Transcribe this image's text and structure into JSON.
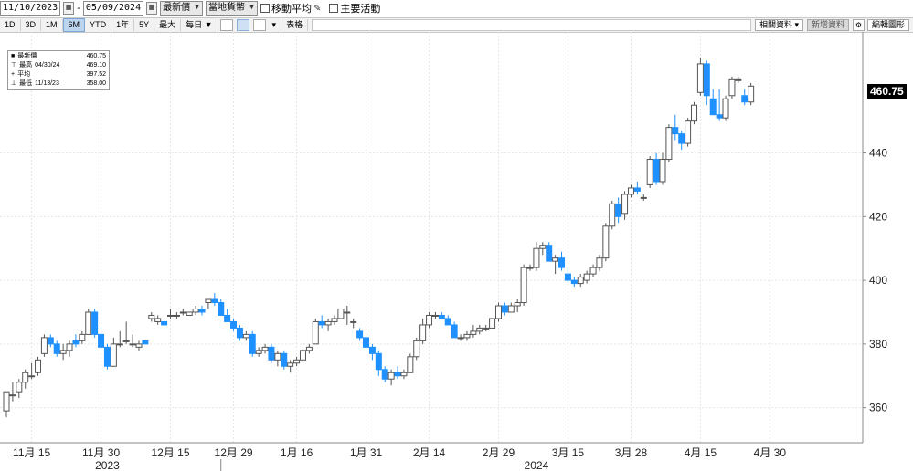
{
  "toolbar": {
    "start_date": "11/10/2023",
    "end_date": "05/09/2024",
    "date_sep": "-",
    "field_select": "最新價",
    "currency_select": "當地貨幣",
    "moving_avg_label": "移動平均",
    "events_label": "主要活動"
  },
  "periods": [
    "1D",
    "3D",
    "1M",
    "6M",
    "YTD",
    "1年",
    "5Y",
    "最大",
    "每日 ▼"
  ],
  "active_period": "6M",
  "table_label": "表格",
  "related_label": "相關資料 ▾",
  "news_label": "新增資料",
  "edit_label": "編輯圖形",
  "legend": {
    "last_label": "最新價",
    "last_value": "460.75",
    "high_label": "最高",
    "high_date": "04/30/24",
    "high_value": "469.10",
    "avg_label": "平均",
    "avg_value": "397.52",
    "low_label": "最低",
    "low_date": "11/13/23",
    "low_value": "358.00"
  },
  "last_price_label": "460.75",
  "colors": {
    "up_fill": "#ffffff",
    "up_edge": "#555555",
    "down_fill": "#1e90ff",
    "grid": "#e6e6e6",
    "axis": "#888888"
  },
  "chart_data": {
    "type": "candlestick",
    "ylim": [
      349,
      478
    ],
    "yticks": [
      360,
      380,
      400,
      420,
      440
    ],
    "xlim": [
      0,
      135
    ],
    "grid": true,
    "xticks": [
      {
        "x": 4,
        "label": "11月 15"
      },
      {
        "x": 15,
        "label": "11月 30"
      },
      {
        "x": 26,
        "label": "12月 15"
      },
      {
        "x": 36,
        "label": "12月 29"
      },
      {
        "x": 46,
        "label": "1月 16"
      },
      {
        "x": 57,
        "label": "1月 31"
      },
      {
        "x": 67,
        "label": "2月 14"
      },
      {
        "x": 78,
        "label": "2月 29"
      },
      {
        "x": 89,
        "label": "3月 15"
      },
      {
        "x": 99,
        "label": "3月 28"
      },
      {
        "x": 110,
        "label": "4月 15"
      },
      {
        "x": 121,
        "label": "4月 30"
      }
    ],
    "years": [
      {
        "x": 16,
        "label": "2023"
      },
      {
        "x": 84,
        "label": "2024"
      }
    ],
    "year_divider_x": 34,
    "candles": [
      [
        359,
        365,
        357,
        365
      ],
      [
        364,
        368,
        362,
        364
      ],
      [
        365,
        369,
        363,
        368
      ],
      [
        368,
        372,
        366,
        371
      ],
      [
        370,
        374,
        369,
        370
      ],
      [
        371,
        376,
        370,
        375
      ],
      [
        377,
        383,
        376,
        382
      ],
      [
        382,
        383,
        379,
        380
      ],
      [
        380,
        381,
        376,
        377
      ],
      [
        377,
        380,
        375,
        378
      ],
      [
        378,
        381,
        376,
        380
      ],
      [
        381,
        383,
        379,
        380
      ],
      [
        381,
        384,
        380,
        383
      ],
      [
        383,
        391,
        383,
        390
      ],
      [
        390,
        391,
        382,
        383
      ],
      [
        383,
        385,
        378,
        379
      ],
      [
        379,
        380,
        372,
        373
      ],
      [
        373,
        382,
        373,
        380
      ],
      [
        380,
        384,
        379,
        380
      ],
      [
        381,
        387,
        380,
        381
      ],
      [
        380,
        383,
        379,
        380
      ],
      [
        379,
        381,
        378,
        380
      ],
      [
        381,
        381,
        380,
        380
      ],
      [
        388,
        390,
        387,
        389
      ],
      [
        387,
        389,
        386,
        388
      ],
      [
        387,
        387,
        386,
        386
      ],
      [
        389,
        391,
        388,
        389
      ],
      [
        389,
        390,
        388,
        389
      ],
      [
        390,
        391,
        389,
        390
      ],
      [
        389,
        390,
        389,
        390
      ],
      [
        390,
        392,
        389,
        391
      ],
      [
        391,
        392,
        389,
        390
      ],
      [
        393,
        394,
        391,
        394
      ],
      [
        394,
        396,
        392,
        393
      ],
      [
        393,
        394,
        389,
        389
      ],
      [
        389,
        391,
        387,
        387
      ],
      [
        387,
        388,
        384,
        385
      ],
      [
        385,
        386,
        381,
        382
      ],
      [
        382,
        384,
        381,
        383
      ],
      [
        383,
        384,
        376,
        377
      ],
      [
        377,
        379,
        376,
        378
      ],
      [
        378,
        380,
        377,
        379
      ],
      [
        379,
        380,
        374,
        375
      ],
      [
        375,
        378,
        373,
        377
      ],
      [
        377,
        378,
        372,
        373
      ],
      [
        373,
        375,
        371,
        374
      ],
      [
        374,
        376,
        373,
        375
      ],
      [
        375,
        379,
        374,
        378
      ],
      [
        378,
        380,
        377,
        379
      ],
      [
        380,
        388,
        380,
        387
      ],
      [
        387,
        389,
        385,
        386
      ],
      [
        386,
        388,
        384,
        387
      ],
      [
        387,
        389,
        386,
        388
      ],
      [
        388,
        391,
        388,
        391
      ],
      [
        390,
        392,
        386,
        390
      ],
      [
        387,
        388,
        385,
        387
      ],
      [
        384,
        385,
        381,
        382
      ],
      [
        382,
        384,
        377,
        379
      ],
      [
        379,
        380,
        375,
        377
      ],
      [
        377,
        378,
        370,
        372
      ],
      [
        372,
        373,
        368,
        369
      ],
      [
        369,
        372,
        367,
        371
      ],
      [
        371,
        373,
        369,
        370
      ],
      [
        370,
        372,
        369,
        371
      ],
      [
        371,
        377,
        371,
        376
      ],
      [
        376,
        382,
        375,
        381
      ],
      [
        381,
        388,
        380,
        386
      ],
      [
        386,
        390,
        385,
        389
      ],
      [
        389,
        390,
        388,
        389
      ],
      [
        389,
        390,
        388,
        388
      ],
      [
        388,
        389,
        386,
        386
      ],
      [
        386,
        387,
        382,
        382
      ],
      [
        382,
        383,
        381,
        382
      ],
      [
        382,
        384,
        381,
        383
      ],
      [
        383,
        386,
        382,
        384
      ],
      [
        384,
        386,
        383,
        385
      ],
      [
        385,
        386,
        384,
        385
      ],
      [
        385,
        388,
        385,
        388
      ],
      [
        388,
        393,
        387,
        392
      ],
      [
        392,
        393,
        389,
        390
      ],
      [
        390,
        393,
        390,
        392
      ],
      [
        392,
        394,
        390,
        393
      ],
      [
        393,
        405,
        392,
        404
      ],
      [
        404,
        405,
        403,
        404
      ],
      [
        404,
        412,
        403,
        410
      ],
      [
        410,
        412,
        408,
        411
      ],
      [
        411,
        412,
        406,
        406
      ],
      [
        406,
        408,
        402,
        407
      ],
      [
        407,
        409,
        403,
        404
      ],
      [
        402,
        404,
        399,
        400
      ],
      [
        400,
        401,
        398,
        399
      ],
      [
        399,
        402,
        398,
        401
      ],
      [
        400,
        403,
        399,
        402
      ],
      [
        402,
        405,
        401,
        404
      ],
      [
        404,
        408,
        403,
        407
      ],
      [
        407,
        418,
        406,
        417
      ],
      [
        417,
        425,
        416,
        424
      ],
      [
        424,
        426,
        418,
        420
      ],
      [
        421,
        428,
        419,
        427
      ],
      [
        427,
        430,
        426,
        429
      ],
      [
        429,
        431,
        427,
        428
      ],
      [
        426,
        427,
        425,
        426
      ],
      [
        430,
        439,
        429,
        438
      ],
      [
        438,
        440,
        430,
        431
      ],
      [
        431,
        440,
        430,
        438
      ],
      [
        438,
        449,
        437,
        448
      ],
      [
        448,
        452,
        444,
        446
      ],
      [
        446,
        447,
        441,
        443
      ],
      [
        443,
        451,
        442,
        450
      ],
      [
        450,
        456,
        449,
        455
      ],
      [
        459,
        470,
        458,
        468
      ],
      [
        468,
        469,
        455,
        458
      ],
      [
        457,
        460,
        452,
        452
      ],
      [
        452,
        460,
        450,
        451
      ],
      [
        451,
        458,
        450,
        457
      ],
      [
        458,
        464,
        457,
        463
      ],
      [
        463,
        464,
        462,
        463
      ],
      [
        458,
        460,
        455,
        456
      ],
      [
        456,
        462,
        455,
        461
      ]
    ]
  }
}
